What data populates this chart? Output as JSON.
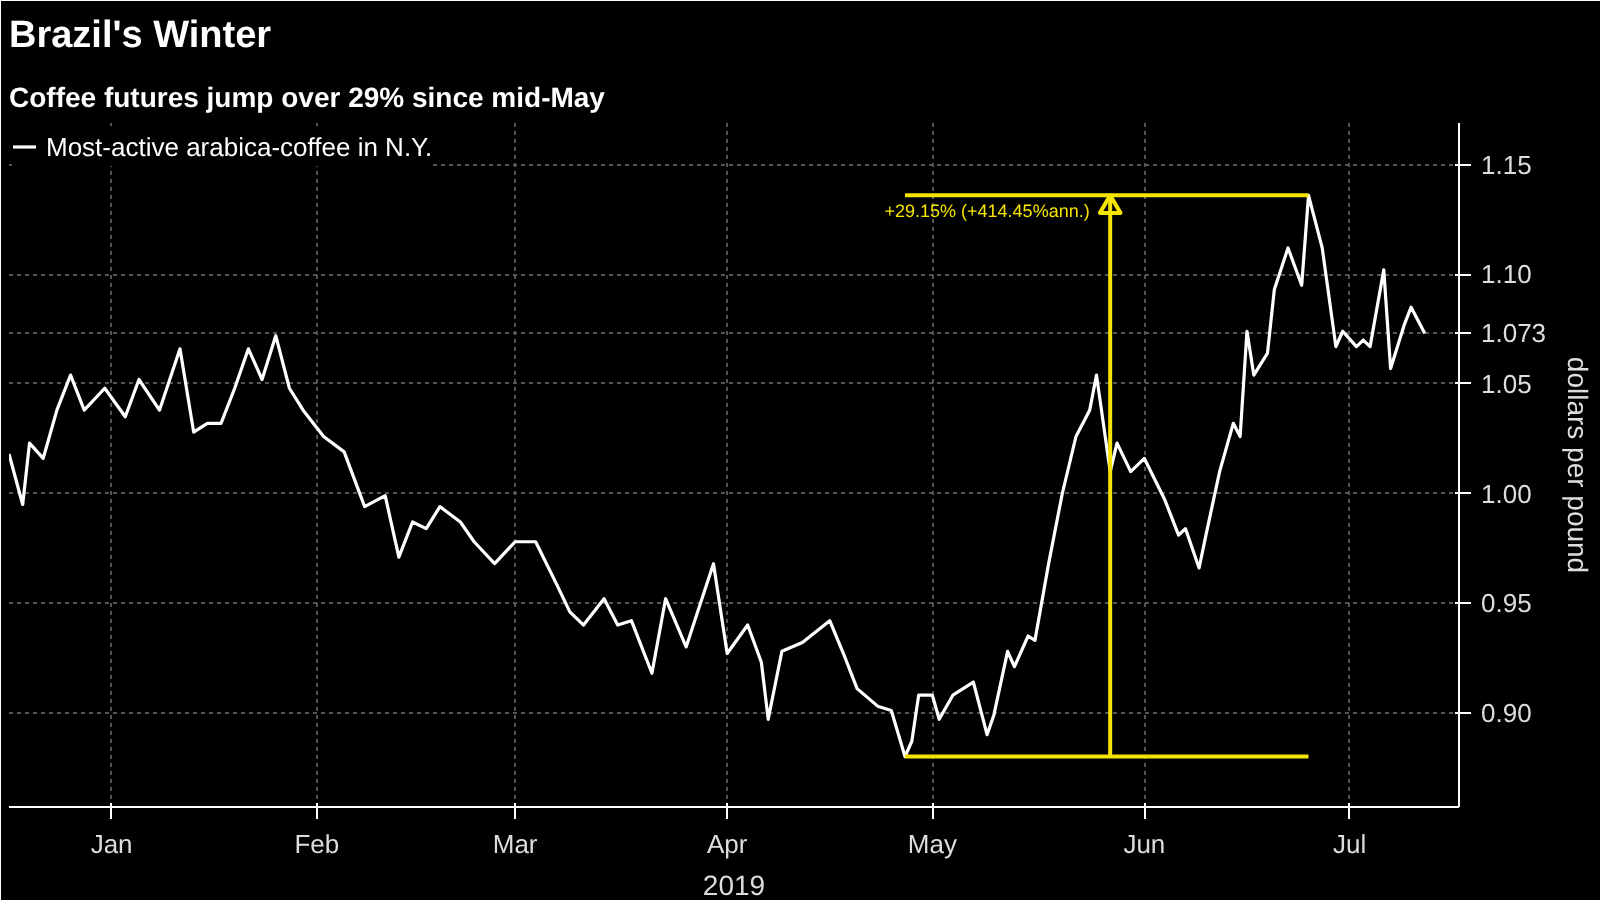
{
  "chart_data": {
    "type": "line",
    "title": "Brazil's Winter",
    "subtitle": "Coffee futures jump over 29% since mid-May",
    "xlabel": "2019",
    "ylabel": "dollars per pound",
    "x": [
      "2019-01-01",
      "2019-01-03",
      "2019-01-04",
      "2019-01-06",
      "2019-01-08",
      "2019-01-10",
      "2019-01-12",
      "2019-01-15",
      "2019-01-18",
      "2019-01-20",
      "2019-01-23",
      "2019-01-26",
      "2019-01-28",
      "2019-01-30",
      "2019-02-01",
      "2019-02-03",
      "2019-02-05",
      "2019-02-07",
      "2019-02-09",
      "2019-02-11",
      "2019-02-13",
      "2019-02-16",
      "2019-02-19",
      "2019-02-22",
      "2019-02-25",
      "2019-02-27",
      "2019-03-01",
      "2019-03-03",
      "2019-03-05",
      "2019-03-08",
      "2019-03-10",
      "2019-03-13",
      "2019-03-16",
      "2019-03-19",
      "2019-03-22",
      "2019-03-24",
      "2019-03-26",
      "2019-03-29",
      "2019-03-31",
      "2019-04-02",
      "2019-04-05",
      "2019-04-07",
      "2019-04-10",
      "2019-04-12",
      "2019-04-14",
      "2019-04-16",
      "2019-04-19",
      "2019-04-21",
      "2019-04-22",
      "2019-04-24",
      "2019-04-27",
      "2019-05-01",
      "2019-05-03",
      "2019-05-05",
      "2019-05-08",
      "2019-05-10",
      "2019-05-12",
      "2019-05-13",
      "2019-05-14",
      "2019-05-16",
      "2019-05-17",
      "2019-05-19",
      "2019-05-22",
      "2019-05-24",
      "2019-05-25",
      "2019-05-27",
      "2019-05-28",
      "2019-05-30",
      "2019-05-31",
      "2019-06-02",
      "2019-06-04",
      "2019-06-06",
      "2019-06-08",
      "2019-06-09",
      "2019-06-11",
      "2019-06-12",
      "2019-06-14",
      "2019-06-16",
      "2019-06-19",
      "2019-06-21",
      "2019-06-22",
      "2019-06-24",
      "2019-06-25",
      "2019-06-27",
      "2019-06-29",
      "2019-06-30",
      "2019-07-01",
      "2019-07-02",
      "2019-07-04",
      "2019-07-05",
      "2019-07-07",
      "2019-07-09",
      "2019-07-10",
      "2019-07-12",
      "2019-07-14",
      "2019-07-15",
      "2019-07-17",
      "2019-07-18",
      "2019-07-19",
      "2019-07-21",
      "2019-07-22",
      "2019-07-24",
      "2019-07-25",
      "2019-07-27"
    ],
    "series": [
      {
        "name": "Most-active arabica-coffee in N.Y.",
        "color": "#ffffff",
        "values": [
          1.018,
          0.995,
          1.023,
          1.016,
          1.038,
          1.054,
          1.038,
          1.048,
          1.035,
          1.052,
          1.038,
          1.066,
          1.028,
          1.032,
          1.032,
          1.048,
          1.066,
          1.052,
          1.072,
          1.048,
          1.038,
          1.026,
          1.019,
          0.994,
          0.999,
          0.971,
          0.987,
          0.984,
          0.994,
          0.987,
          0.978,
          0.968,
          0.978,
          0.978,
          0.959,
          0.946,
          0.94,
          0.952,
          0.94,
          0.942,
          0.918,
          0.952,
          0.93,
          0.949,
          0.968,
          0.927,
          0.94,
          0.923,
          0.897,
          0.928,
          0.932,
          0.942,
          0.927,
          0.911,
          0.903,
          0.901,
          0.88,
          0.887,
          0.908,
          0.908,
          0.897,
          0.908,
          0.914,
          0.89,
          0.899,
          0.928,
          0.921,
          0.935,
          0.933,
          0.968,
          1.0,
          1.026,
          1.038,
          1.054,
          1.01,
          1.023,
          1.01,
          1.016,
          0.997,
          0.981,
          0.984,
          0.966,
          0.981,
          1.01,
          1.032,
          1.026,
          1.074,
          1.054,
          1.064,
          1.093,
          1.112,
          1.095,
          1.136,
          1.112,
          1.067,
          1.074,
          1.067,
          1.07,
          1.067,
          1.102,
          1.057,
          1.077,
          1.085,
          1.073
        ]
      }
    ],
    "xlim": [
      "2019-01-01",
      "2019-08-01"
    ],
    "xticks": [
      {
        "value": "2019-01-16",
        "label": "Jan"
      },
      {
        "value": "2019-02-15",
        "label": "Feb"
      },
      {
        "value": "2019-03-16",
        "label": "Mar"
      },
      {
        "value": "2019-04-16",
        "label": "Apr"
      },
      {
        "value": "2019-05-16",
        "label": "May"
      },
      {
        "value": "2019-06-16",
        "label": "Jun"
      },
      {
        "value": "2019-07-16",
        "label": "Jul"
      }
    ],
    "ylim": [
      0.857,
      1.169
    ],
    "yticks": [
      {
        "value": 0.9,
        "label": "0.90"
      },
      {
        "value": 0.95,
        "label": "0.95"
      },
      {
        "value": 1.0,
        "label": "1.00"
      },
      {
        "value": 1.05,
        "label": "1.05"
      },
      {
        "value": 1.073,
        "label": "1.073"
      },
      {
        "value": 1.1,
        "label": "1.10"
      },
      {
        "value": 1.15,
        "label": "1.15"
      }
    ],
    "ref_lines": [
      {
        "axis": "y",
        "value": 1.136,
        "label": "+29.15% (+414.45%ann.)",
        "color": "#f5e400"
      },
      {
        "axis": "y",
        "value": 0.88,
        "color": "#f5e400"
      },
      {
        "axis": "x",
        "value": "2019-06-11",
        "color": "#f5e400"
      }
    ],
    "grid": true,
    "legend": "top left",
    "line_style": "solid",
    "marker": "none"
  }
}
